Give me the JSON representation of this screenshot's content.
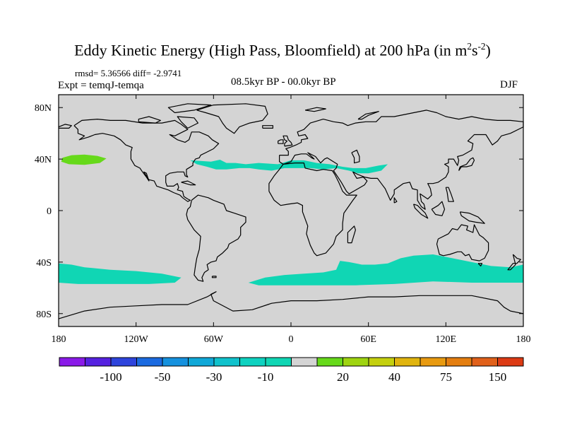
{
  "chart_data": {
    "type": "heatmap",
    "title": "Eddy Kinetic Energy (High Pass, Bloomfield) at 200 hPa (in m",
    "title_units": {
      "m_exp": "2",
      "s": "s",
      "s_exp": "-2",
      "close": ")"
    },
    "stats": "rmsd= 5.36566 diff= -2.9741",
    "period": "08.5kyr BP - 00.0kyr BP",
    "experiment": "Expt = temqJ-temqa",
    "season": "DJF",
    "x_ticks": [
      "180",
      "120W",
      "60W",
      "0",
      "60E",
      "120E",
      "180"
    ],
    "x_tick_values": [
      -180,
      -120,
      -60,
      0,
      60,
      120,
      180
    ],
    "y_ticks": [
      "80N",
      "40N",
      "0",
      "40S",
      "80S"
    ],
    "y_tick_values": [
      80,
      40,
      0,
      -40,
      -80
    ],
    "xlim": [
      -180,
      180
    ],
    "ylim": [
      -90,
      90
    ],
    "background_value_range": [
      -10,
      20
    ],
    "regions": [
      {
        "name": "north-pacific-positive",
        "level": "10 to 20",
        "color": "#66d91a",
        "polygon": [
          [
            -177,
            41
          ],
          [
            -170,
            43
          ],
          [
            -160,
            43.5
          ],
          [
            -150,
            42.5
          ],
          [
            -143,
            40.5
          ],
          [
            -148,
            37
          ],
          [
            -160,
            35.5
          ],
          [
            -172,
            36
          ],
          [
            -178,
            38
          ]
        ]
      },
      {
        "name": "atlantic-africa-negative",
        "level": "-20 to -10",
        "color": "#10d6b4",
        "polygon": [
          [
            -78,
            39
          ],
          [
            -70,
            38.5
          ],
          [
            -62,
            38
          ],
          [
            -55,
            39.5
          ],
          [
            -50,
            37
          ],
          [
            -43,
            37
          ],
          [
            -35,
            36
          ],
          [
            -25,
            37
          ],
          [
            -10,
            36
          ],
          [
            0,
            39
          ],
          [
            10,
            39
          ],
          [
            20,
            37
          ],
          [
            30,
            36
          ],
          [
            40,
            34
          ],
          [
            48,
            33
          ],
          [
            58,
            33
          ],
          [
            68,
            35
          ],
          [
            75,
            36
          ],
          [
            70,
            31
          ],
          [
            60,
            29
          ],
          [
            52,
            29
          ],
          [
            45,
            31
          ],
          [
            35,
            33
          ],
          [
            25,
            32
          ],
          [
            15,
            33
          ],
          [
            5,
            33
          ],
          [
            -5,
            33
          ],
          [
            -15,
            31
          ],
          [
            -25,
            32
          ],
          [
            -32,
            33
          ],
          [
            -40,
            33
          ],
          [
            -50,
            32
          ],
          [
            -58,
            32
          ],
          [
            -65,
            34
          ],
          [
            -73,
            36
          ]
        ]
      },
      {
        "name": "south-pacific-negative",
        "level": "-20 to -10",
        "color": "#10d6b4",
        "polygon": [
          [
            -180,
            -41
          ],
          [
            -170,
            -42
          ],
          [
            -160,
            -44
          ],
          [
            -140,
            -46
          ],
          [
            -120,
            -47
          ],
          [
            -100,
            -49
          ],
          [
            -85,
            -52
          ],
          [
            -90,
            -56
          ],
          [
            -110,
            -57
          ],
          [
            -140,
            -57
          ],
          [
            -165,
            -57
          ],
          [
            -180,
            -56
          ]
        ]
      },
      {
        "name": "southern-indian-negative",
        "level": "-20 to -10",
        "color": "#10d6b4",
        "polygon": [
          [
            -33,
            -56
          ],
          [
            -20,
            -52
          ],
          [
            -5,
            -50
          ],
          [
            10,
            -49
          ],
          [
            25,
            -48
          ],
          [
            35,
            -46
          ],
          [
            38,
            -39
          ],
          [
            45,
            -40
          ],
          [
            55,
            -42
          ],
          [
            65,
            -42
          ],
          [
            75,
            -41
          ],
          [
            85,
            -37
          ],
          [
            95,
            -35
          ],
          [
            110,
            -34
          ],
          [
            125,
            -37
          ],
          [
            140,
            -40
          ],
          [
            155,
            -43
          ],
          [
            170,
            -44
          ],
          [
            180,
            -42
          ],
          [
            180,
            -56
          ],
          [
            165,
            -56
          ],
          [
            140,
            -56
          ],
          [
            110,
            -55
          ],
          [
            80,
            -57
          ],
          [
            50,
            -58
          ],
          [
            20,
            -58
          ],
          [
            -10,
            -58
          ],
          [
            -25,
            -58
          ]
        ]
      }
    ],
    "colorbar": {
      "colors": [
        "#8a1ae8",
        "#5521e0",
        "#2e44dc",
        "#1b6ae0",
        "#1591de",
        "#10a8d8",
        "#10c2cc",
        "#0ed2c0",
        "#10d6b4",
        "#d4d4d4",
        "#66d91a",
        "#9ed410",
        "#c4d00e",
        "#e0b40e",
        "#e89a10",
        "#e47e10",
        "#e0601a",
        "#dc3a14"
      ],
      "labels": [
        "-100",
        "-50",
        "-30",
        "-10",
        "20",
        "40",
        "75",
        "150"
      ],
      "label_boundaries": [
        2,
        4,
        6,
        8,
        11,
        13,
        15,
        17
      ]
    }
  }
}
